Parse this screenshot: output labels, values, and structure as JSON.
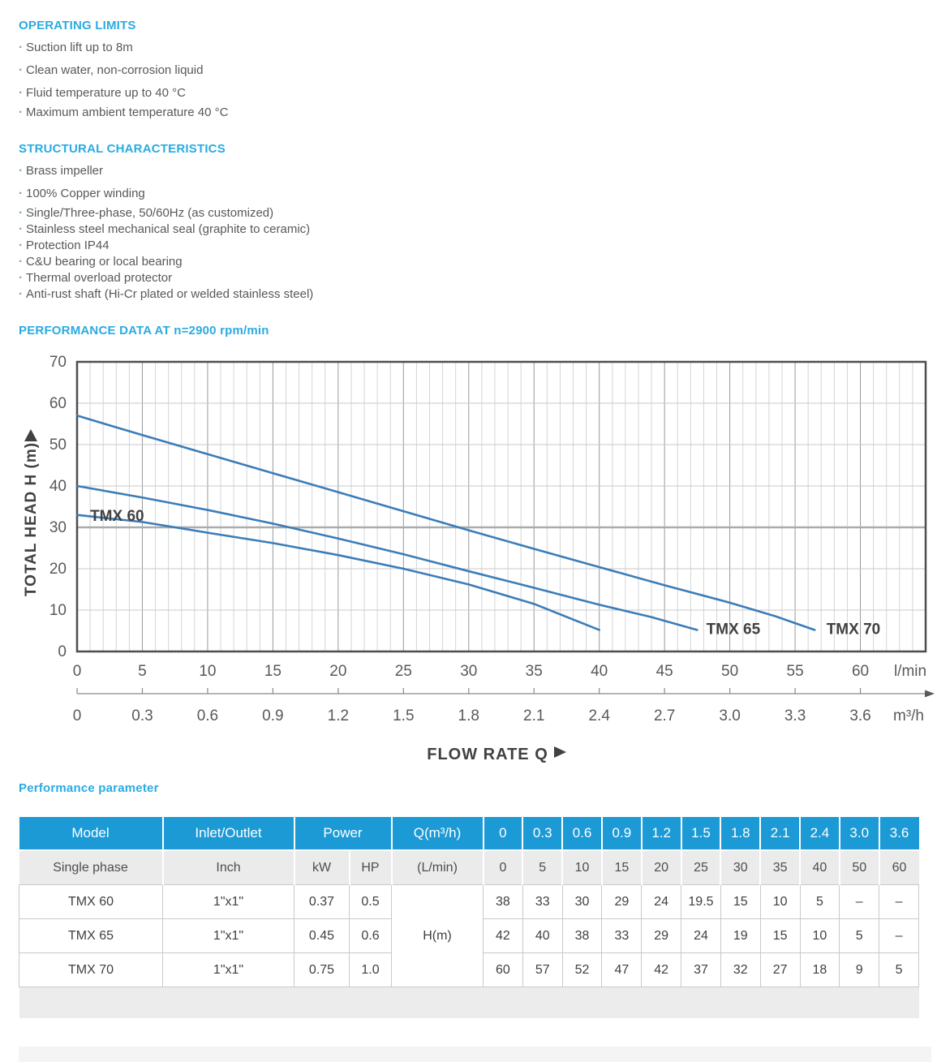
{
  "colors": {
    "accent": "#29abe2",
    "table_header_bg": "#1c9ad6",
    "body_text": "#58595b"
  },
  "icons": {
    "bullet_dot": "·",
    "head_axis_arrow": "▲",
    "flow_axis_arrow": "→",
    "flow_rate_arrow": "▶"
  },
  "operating_limits": {
    "title": "OPERATING LIMITS",
    "items": [
      "Suction lift up to 8m",
      "Clean water, non-corrosion liquid",
      "Fluid temperature up to 40 °C",
      "Maximum ambient temperature 40 °C"
    ]
  },
  "structural_characteristics": {
    "title": "STRUCTURAL CHARACTERISTICS",
    "items": [
      "Brass impeller",
      "100% Copper winding",
      "Single/Three-phase, 50/60Hz (as customized)",
      "Stainless steel mechanical seal (graphite to ceramic)",
      "Protection IP44",
      "C&U bearing or local bearing",
      "Thermal overload protector",
      "Anti-rust shaft (Hi-Cr plated or welded stainless steel)"
    ]
  },
  "performance_section": {
    "title": "PERFORMANCE DATA AT n=2900 rpm/min"
  },
  "chart_data": {
    "type": "line",
    "ylabel": "TOTAL HEAD H (m)",
    "xlabel": "FLOW RATE Q",
    "x_unit_primary": "l/min",
    "x_unit_secondary": "m³/h",
    "xlim": [
      0,
      65
    ],
    "ylim": [
      0,
      70
    ],
    "y_ticks": [
      0,
      10,
      20,
      30,
      40,
      50,
      60,
      70
    ],
    "x_ticks_lmin": [
      0,
      5,
      10,
      15,
      20,
      25,
      30,
      35,
      40,
      45,
      50,
      55,
      60
    ],
    "x_ticks_m3h": [
      "0",
      "0.3",
      "0.6",
      "0.9",
      "1.2",
      "1.5",
      "1.8",
      "2.1",
      "2.4",
      "2.7",
      "3.0",
      "3.3",
      "3.6"
    ],
    "grid": "on",
    "highlight_gridline_y": 30,
    "curve_color": "#3b7db8",
    "series": [
      {
        "name": "TMX 60",
        "points": [
          [
            0,
            33
          ],
          [
            5,
            31.3
          ],
          [
            10,
            28.7
          ],
          [
            15,
            26.2
          ],
          [
            20,
            23.3
          ],
          [
            25,
            20.0
          ],
          [
            30,
            16.2
          ],
          [
            35,
            11.5
          ],
          [
            40,
            5.2
          ]
        ],
        "label_pos": [
          1.0,
          31.6
        ]
      },
      {
        "name": "TMX 65",
        "points": [
          [
            0,
            40
          ],
          [
            5,
            37.2
          ],
          [
            10,
            34.2
          ],
          [
            15,
            30.9
          ],
          [
            20,
            27.3
          ],
          [
            25,
            23.5
          ],
          [
            30,
            19.4
          ],
          [
            35,
            15.4
          ],
          [
            40,
            11.3
          ],
          [
            44,
            8.3
          ],
          [
            47.5,
            5.2
          ]
        ],
        "label_pos": [
          48.2,
          4.2
        ]
      },
      {
        "name": "TMX 70",
        "points": [
          [
            0,
            57
          ],
          [
            5,
            52.3
          ],
          [
            10,
            47.7
          ],
          [
            15,
            43.1
          ],
          [
            20,
            38.5
          ],
          [
            25,
            33.9
          ],
          [
            30,
            29.3
          ],
          [
            35,
            24.8
          ],
          [
            40,
            20.4
          ],
          [
            45,
            16.0
          ],
          [
            50,
            11.8
          ],
          [
            53.5,
            8.5
          ],
          [
            56.5,
            5.2
          ]
        ],
        "label_pos": [
          57.4,
          4.2
        ]
      }
    ]
  },
  "table": {
    "title": "Performance parameter",
    "col_model": "Model",
    "col_inlet": "Inlet/Outlet",
    "col_power": "Power",
    "col_q": "Q(m³/h)",
    "sub_model": "Single phase",
    "sub_inlet": "Inch",
    "sub_kw": "kW",
    "sub_hp": "HP",
    "sub_q": "(L/min)",
    "flow_m3h": [
      "0",
      "0.3",
      "0.6",
      "0.9",
      "1.2",
      "1.5",
      "1.8",
      "2.1",
      "2.4",
      "3.0",
      "3.6"
    ],
    "flow_lmin": [
      "0",
      "5",
      "10",
      "15",
      "20",
      "25",
      "30",
      "35",
      "40",
      "50",
      "60"
    ],
    "h_label": "H(m)",
    "rows": [
      {
        "model": "TMX 60",
        "inlet": "1\"x1\"",
        "kw": "0.37",
        "hp": "0.5",
        "h_values": [
          "38",
          "33",
          "30",
          "29",
          "24",
          "19.5",
          "15",
          "10",
          "5",
          "–",
          "–"
        ]
      },
      {
        "model": "TMX 65",
        "inlet": "1\"x1\"",
        "kw": "0.45",
        "hp": "0.6",
        "h_values": [
          "42",
          "40",
          "38",
          "33",
          "29",
          "24",
          "19",
          "15",
          "10",
          "5",
          "–"
        ]
      },
      {
        "model": "TMX 70",
        "inlet": "1\"x1\"",
        "kw": "0.75",
        "hp": "1.0",
        "h_values": [
          "60",
          "57",
          "52",
          "47",
          "42",
          "37",
          "32",
          "27",
          "18",
          "9",
          "5"
        ]
      }
    ]
  }
}
